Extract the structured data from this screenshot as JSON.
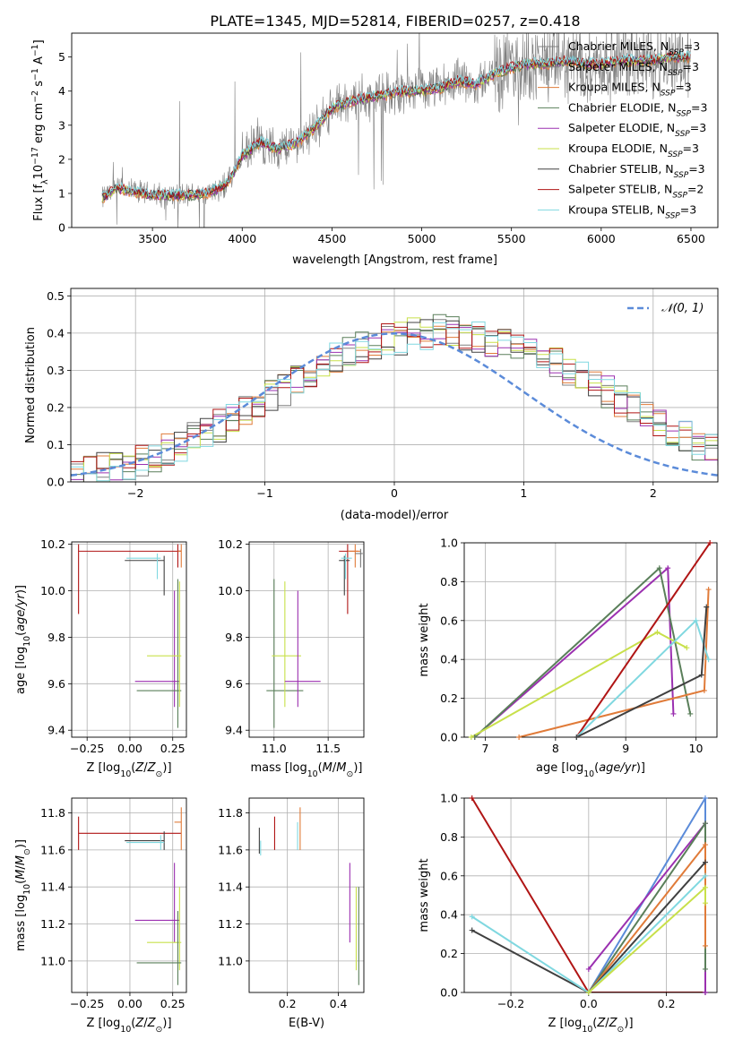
{
  "title": "PLATE=1345, MJD=52814, FIBERID=0257, z=0.418",
  "colors": {
    "chabrier_miles": "#808080",
    "salpeter_miles": "#7a7a7a",
    "kroupa_miles": "#e07b39",
    "chabrier_elodie": "#5a7f5a",
    "salpeter_elodie": "#9b30b0",
    "kroupa_elodie": "#c8e04a",
    "chabrier_stelib": "#404040",
    "salpeter_stelib": "#b01515",
    "kroupa_stelib": "#80d8e0",
    "normal": "#5b8bd9"
  },
  "chart_data": [
    {
      "type": "line",
      "name": "spectrum",
      "xlabel": "wavelength [Angstrom, rest frame]",
      "ylabel": "Flux [f_λ10⁻¹⁷ erg cm⁻² s⁻¹ A⁻¹]",
      "xlim": [
        3050,
        6650
      ],
      "ylim": [
        0,
        5.7
      ],
      "xticks": [
        3500,
        4000,
        4500,
        5000,
        5500,
        6000,
        6500
      ],
      "yticks": [
        0,
        1,
        2,
        3,
        4,
        5
      ],
      "grid": false,
      "legend_position": "top-right",
      "legend": [
        {
          "label": "Chabrier MILES, N",
          "sub": "SSP",
          "suffix": "=3",
          "color_key": "chabrier_miles"
        },
        {
          "label": "Salpeter MILES, N",
          "sub": "SSP",
          "suffix": "=3",
          "color_key": "salpeter_miles"
        },
        {
          "label": "Kroupa MILES, N",
          "sub": "SSP",
          "suffix": "=3",
          "color_key": "kroupa_miles"
        },
        {
          "label": "Chabrier ELODIE, N",
          "sub": "SSP",
          "suffix": "=3",
          "color_key": "chabrier_elodie"
        },
        {
          "label": "Salpeter ELODIE, N",
          "sub": "SSP",
          "suffix": "=3",
          "color_key": "salpeter_elodie"
        },
        {
          "label": "Kroupa ELODIE, N",
          "sub": "SSP",
          "suffix": "=3",
          "color_key": "kroupa_elodie"
        },
        {
          "label": "Chabrier STELIB, N",
          "sub": "SSP",
          "suffix": "=3",
          "color_key": "chabrier_stelib"
        },
        {
          "label": "Salpeter STELIB, N",
          "sub": "SSP",
          "suffix": "=2",
          "color_key": "salpeter_stelib"
        },
        {
          "label": "Kroupa STELIB, N",
          "sub": "SSP",
          "suffix": "=3",
          "color_key": "kroupa_stelib"
        }
      ],
      "data_x_range": [
        3220,
        6500
      ],
      "model_points": [
        [
          3220,
          0.85
        ],
        [
          3300,
          1.15
        ],
        [
          3400,
          1.05
        ],
        [
          3500,
          0.95
        ],
        [
          3600,
          0.95
        ],
        [
          3700,
          0.95
        ],
        [
          3800,
          1.0
        ],
        [
          3900,
          1.2
        ],
        [
          3950,
          1.6
        ],
        [
          4000,
          2.1
        ],
        [
          4100,
          2.5
        ],
        [
          4200,
          2.3
        ],
        [
          4300,
          2.5
        ],
        [
          4400,
          2.9
        ],
        [
          4500,
          3.5
        ],
        [
          4600,
          3.7
        ],
        [
          4700,
          3.8
        ],
        [
          4800,
          3.9
        ],
        [
          4900,
          4.0
        ],
        [
          5000,
          4.0
        ],
        [
          5100,
          4.1
        ],
        [
          5200,
          4.3
        ],
        [
          5300,
          4.2
        ],
        [
          5400,
          4.5
        ],
        [
          5500,
          4.7
        ],
        [
          5600,
          4.8
        ],
        [
          5700,
          4.8
        ],
        [
          5800,
          4.9
        ],
        [
          5900,
          4.8
        ],
        [
          6000,
          4.8
        ],
        [
          6100,
          4.9
        ],
        [
          6200,
          4.9
        ],
        [
          6300,
          4.9
        ],
        [
          6400,
          5.0
        ],
        [
          6500,
          5.0
        ]
      ]
    },
    {
      "type": "histogram",
      "name": "residuals",
      "xlabel": "(data-model)/error",
      "ylabel": "Normed distribution",
      "xlim": [
        -2.5,
        2.5
      ],
      "ylim": [
        0,
        0.52
      ],
      "xticks": [
        -2,
        -1,
        0,
        1,
        2
      ],
      "yticks": [
        0.0,
        0.1,
        0.2,
        0.3,
        0.4,
        0.5
      ],
      "grid": true,
      "legend_position": "top-right",
      "legend": "N(0,1)",
      "bin_width": 0.1,
      "bin_start": -2.5,
      "base": [
        0.02,
        0.025,
        0.035,
        0.04,
        0.05,
        0.06,
        0.07,
        0.085,
        0.1,
        0.115,
        0.13,
        0.15,
        0.17,
        0.19,
        0.21,
        0.23,
        0.25,
        0.27,
        0.29,
        0.31,
        0.33,
        0.35,
        0.36,
        0.375,
        0.38,
        0.385,
        0.4,
        0.4,
        0.41,
        0.4,
        0.395,
        0.39,
        0.38,
        0.37,
        0.36,
        0.35,
        0.34,
        0.32,
        0.3,
        0.28,
        0.26,
        0.24,
        0.22,
        0.2,
        0.18,
        0.16,
        0.14,
        0.12,
        0.1,
        0.085,
        0.07,
        0.06,
        0.05
      ]
    },
    {
      "type": "scatter",
      "name": "age-vs-Z",
      "xlabel": "Z [log10(Z/Z⊙)]",
      "ylabel": "age [log10(age/yr)]",
      "xlim": [
        -0.34,
        0.33
      ],
      "ylim": [
        9.37,
        10.21
      ],
      "xticks": [
        -0.25,
        0.0,
        0.25
      ],
      "yticks": [
        9.4,
        9.6,
        9.8,
        10.0,
        10.2
      ],
      "grid": true
    },
    {
      "type": "scatter",
      "name": "age-vs-mass",
      "xlabel": "mass [log10(M/M⊙)]",
      "ylabel": "",
      "xlim": [
        10.77,
        11.83
      ],
      "ylim": [
        9.37,
        10.21
      ],
      "xticks": [
        11.0,
        11.5
      ],
      "yticks": [
        9.4,
        9.6,
        9.8,
        10.0,
        10.2
      ],
      "grid": true
    },
    {
      "type": "line",
      "name": "mass-weight-vs-age",
      "xlabel": "age [log10(age/yr)]",
      "ylabel": "mass weight",
      "xlim": [
        6.7,
        10.3
      ],
      "ylim": [
        0,
        1
      ],
      "xticks": [
        7,
        8,
        9,
        10
      ],
      "yticks": [
        0.0,
        0.2,
        0.4,
        0.6,
        0.8,
        1.0
      ],
      "grid": true,
      "series": [
        {
          "color_key": "salpeter_elodie",
          "points": [
            [
              6.85,
              0
            ],
            [
              9.6,
              0.87
            ],
            [
              9.68,
              0.12
            ]
          ]
        },
        {
          "color_key": "chabrier_elodie",
          "points": [
            [
              6.85,
              0
            ],
            [
              9.48,
              0.87
            ],
            [
              9.92,
              0.12
            ]
          ]
        },
        {
          "color_key": "kroupa_elodie",
          "points": [
            [
              6.8,
              0
            ],
            [
              9.45,
              0.54
            ],
            [
              9.87,
              0.46
            ]
          ]
        },
        {
          "color_key": "kroupa_miles",
          "points": [
            [
              7.48,
              0
            ],
            [
              10.12,
              0.24
            ],
            [
              10.18,
              0.76
            ]
          ]
        },
        {
          "color_key": "salpeter_stelib",
          "points": [
            [
              8.3,
              0
            ],
            [
              10.2,
              1.0
            ]
          ]
        },
        {
          "color_key": "kroupa_stelib",
          "points": [
            [
              8.3,
              0
            ],
            [
              10.0,
              0.6
            ],
            [
              10.18,
              0.4
            ]
          ]
        },
        {
          "color_key": "chabrier_stelib",
          "points": [
            [
              8.3,
              0
            ],
            [
              10.08,
              0.32
            ],
            [
              10.15,
              0.67
            ]
          ]
        }
      ]
    },
    {
      "type": "scatter",
      "name": "mass-vs-Z",
      "xlabel": "Z [log10(Z/Z⊙)]",
      "ylabel": "mass [log10(M/M⊙)]",
      "xlim": [
        -0.34,
        0.33
      ],
      "ylim": [
        10.83,
        11.88
      ],
      "xticks": [
        -0.25,
        0.0,
        0.25
      ],
      "yticks": [
        11.0,
        11.2,
        11.4,
        11.6,
        11.8
      ],
      "grid": true
    },
    {
      "type": "scatter",
      "name": "mass-vs-ebv",
      "xlabel": "E(B-V)",
      "ylabel": "",
      "xlim": [
        0.05,
        0.5
      ],
      "ylim": [
        10.83,
        11.88
      ],
      "xticks": [
        0.2,
        0.4
      ],
      "yticks": [
        11.0,
        11.2,
        11.4,
        11.6,
        11.8
      ],
      "grid": true
    },
    {
      "type": "line",
      "name": "mass-weight-vs-Z",
      "xlabel": "Z [log10(Z/Z⊙)]",
      "ylabel": "mass weight",
      "xlim": [
        -0.32,
        0.33
      ],
      "ylim": [
        0,
        1
      ],
      "xticks": [
        -0.2,
        0.0,
        0.2
      ],
      "yticks": [
        0.0,
        0.2,
        0.4,
        0.6,
        0.8,
        1.0
      ],
      "grid": true,
      "series": [
        {
          "color_key": "salpeter_stelib",
          "points": [
            [
              -0.3,
              1.0
            ],
            [
              0.0,
              0.0
            ],
            [
              0.3,
              0.0
            ]
          ]
        },
        {
          "color_key": "normal",
          "points": [
            [
              0.0,
              0.0
            ],
            [
              0.3,
              1.0
            ],
            [
              0.3,
              0.0
            ]
          ]
        },
        {
          "color_key": "salpeter_elodie",
          "points": [
            [
              0.0,
              0.12
            ],
            [
              0.3,
              0.87
            ],
            [
              0.3,
              0.0
            ]
          ]
        },
        {
          "color_key": "chabrier_elodie",
          "points": [
            [
              0.0,
              0.0
            ],
            [
              0.3,
              0.87
            ],
            [
              0.3,
              0.12
            ]
          ]
        },
        {
          "color_key": "kroupa_miles",
          "points": [
            [
              0.0,
              0.0
            ],
            [
              0.3,
              0.76
            ],
            [
              0.3,
              0.24
            ]
          ]
        },
        {
          "color_key": "chabrier_stelib",
          "points": [
            [
              -0.3,
              0.32
            ],
            [
              0.0,
              0.0
            ],
            [
              0.3,
              0.67
            ]
          ]
        },
        {
          "color_key": "kroupa_stelib",
          "points": [
            [
              -0.3,
              0.39
            ],
            [
              0.0,
              0.0
            ],
            [
              0.3,
              0.6
            ]
          ]
        },
        {
          "color_key": "kroupa_elodie",
          "points": [
            [
              0.0,
              0.0
            ],
            [
              0.3,
              0.54
            ],
            [
              0.3,
              0.46
            ]
          ]
        }
      ]
    }
  ]
}
